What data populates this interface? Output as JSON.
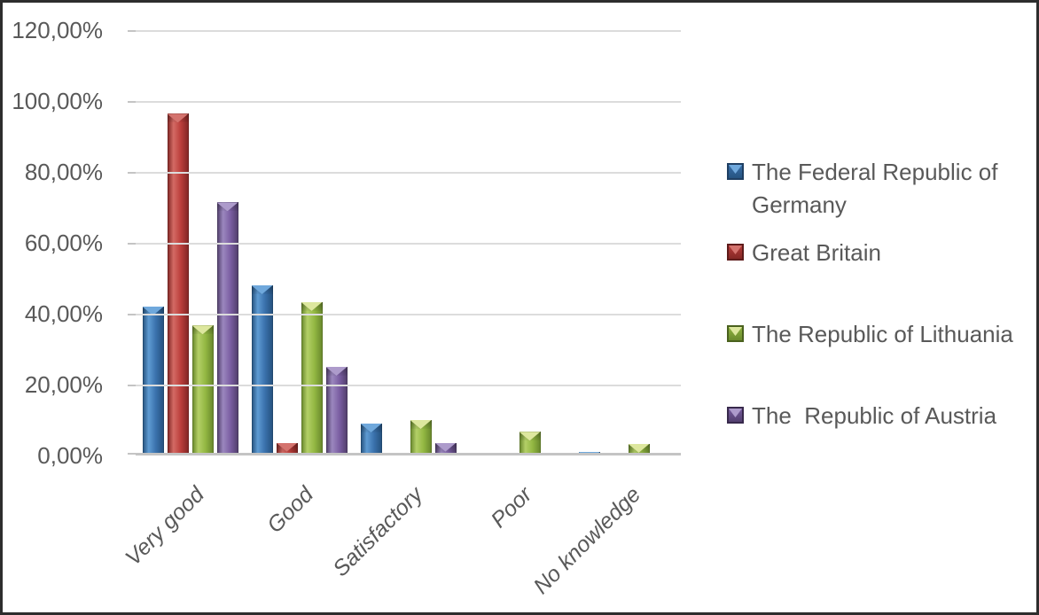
{
  "chart_data": {
    "type": "bar",
    "title": "",
    "categories": [
      "Very good",
      "Good",
      "Satisfactory",
      "Poor",
      "No knowledge"
    ],
    "series": [
      {
        "name": "The Federal Republic of Germany",
        "values": [
          42,
          48,
          9,
          0,
          1
        ],
        "colors": {
          "main": "#3A71AC",
          "light": "#5E9BD3",
          "dark": "#24507C",
          "cap": "#6FA8DC",
          "edge": "#1F3F63"
        }
      },
      {
        "name": "Great Britain",
        "values": [
          96.4,
          3.6,
          0,
          0,
          0
        ],
        "colors": {
          "main": "#BB3E3B",
          "light": "#D36A64",
          "dark": "#7E2523",
          "cap": "#D4736E",
          "edge": "#5E1B1A"
        }
      },
      {
        "name": "The Republic of Lithuania",
        "values": [
          36.7,
          43.3,
          10,
          6.7,
          3.3
        ],
        "colors": {
          "main": "#92B742",
          "light": "#B3CF67",
          "dark": "#66852B",
          "cap": "#DDE79E",
          "edge": "#4A611E"
        }
      },
      {
        "name": "The  Republic of Austria",
        "values": [
          71.4,
          25,
          3.6,
          0,
          0
        ],
        "colors": {
          "main": "#7A5EA2",
          "light": "#9B87BE",
          "dark": "#4F3D69",
          "cap": "#AD9BCB",
          "edge": "#38294C"
        }
      }
    ],
    "y_axis": {
      "tick_labels": [
        "120,00%",
        "100,00%",
        "80,00%",
        "60,00%",
        "40,00%",
        "20,00%",
        "0,00%"
      ],
      "min": 0,
      "max": 120,
      "step": 20,
      "unit": "%",
      "decimal_separator": ","
    },
    "x_axis": {
      "label_rotation_deg": 45,
      "label_style": "italic"
    },
    "legend": {
      "position": "right",
      "entries": [
        "The Federal Republic of Germany",
        "Great Britain",
        "The Republic of Lithuania",
        "The  Republic of Austria"
      ]
    },
    "grid": true,
    "gridline_color": "#DCDCDC",
    "axis_text_color": "#595959",
    "background_color": "#FFFFFF",
    "border_color": "#2D2D2D"
  }
}
